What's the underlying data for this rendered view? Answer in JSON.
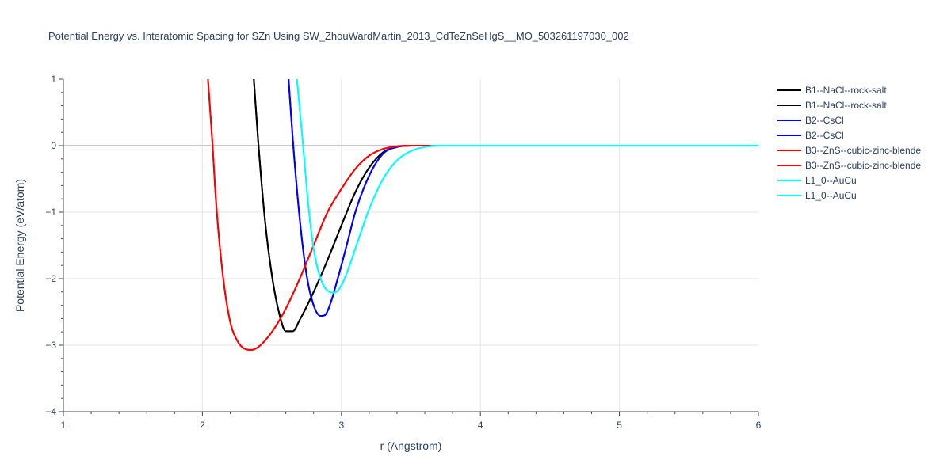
{
  "chart_data": {
    "type": "line",
    "title": "Potential Energy vs. Interatomic Spacing for SZn Using SW_ZhouWardMartin_2013_CdTeZnSeHgS__MO_503261197030_002",
    "xlabel": "r (Angstrom)",
    "ylabel": "Potential Energy (eV/atom)",
    "xlim": [
      1,
      6
    ],
    "ylim": [
      -4,
      1
    ],
    "x_ticks": [
      "1",
      "2",
      "3",
      "4",
      "5",
      "6"
    ],
    "y_ticks": [
      "1",
      "0",
      "−1",
      "−2",
      "−3",
      "−4"
    ],
    "grid": true,
    "legend_position": "top-right",
    "series": [
      {
        "name": "B1--NaCl--rock-salt",
        "color": "#000000",
        "x": [
          2.37,
          2.4,
          2.45,
          2.5,
          2.55,
          2.6,
          2.65,
          2.7,
          2.8,
          2.9,
          3.0,
          3.1,
          3.2,
          3.3,
          3.4,
          3.5,
          3.6,
          3.7,
          4.0,
          6.0
        ],
        "y": [
          1.0,
          0.1,
          -1.12,
          -1.95,
          -2.5,
          -2.79,
          -2.79,
          -2.62,
          -2.2,
          -1.72,
          -1.2,
          -0.7,
          -0.33,
          -0.1,
          -0.02,
          0.0,
          0.0,
          0.0,
          0.0,
          0.0
        ]
      },
      {
        "name": "B1--NaCl--rock-salt",
        "color": "#000000",
        "x": [
          2.37,
          2.4,
          2.45,
          2.5,
          2.55,
          2.6,
          2.65,
          2.7,
          2.8,
          2.9,
          3.0,
          3.1,
          3.2,
          3.3,
          3.4,
          3.5,
          3.6,
          3.7,
          4.0,
          6.0
        ],
        "y": [
          1.0,
          0.1,
          -1.12,
          -1.95,
          -2.5,
          -2.79,
          -2.79,
          -2.62,
          -2.2,
          -1.72,
          -1.2,
          -0.7,
          -0.33,
          -0.1,
          -0.02,
          0.0,
          0.0,
          0.0,
          0.0,
          0.0
        ]
      },
      {
        "name": "B2--CsCl",
        "color": "#0000ff",
        "x": [
          2.62,
          2.65,
          2.7,
          2.75,
          2.8,
          2.85,
          2.88,
          2.92,
          2.96,
          3.0,
          3.05,
          3.1,
          3.2,
          3.3,
          3.4,
          3.5,
          3.6,
          3.7,
          4.0,
          6.0
        ],
        "y": [
          1.0,
          0.1,
          -1.1,
          -1.95,
          -2.4,
          -2.56,
          -2.55,
          -2.38,
          -2.1,
          -1.8,
          -1.4,
          -1.0,
          -0.45,
          -0.12,
          -0.02,
          0.0,
          0.0,
          0.0,
          0.0,
          0.0
        ]
      },
      {
        "name": "B2--CsCl",
        "color": "#0000ff",
        "x": [
          2.62,
          2.65,
          2.7,
          2.75,
          2.8,
          2.85,
          2.88,
          2.92,
          2.96,
          3.0,
          3.05,
          3.1,
          3.2,
          3.3,
          3.4,
          3.5,
          3.6,
          3.7,
          4.0,
          6.0
        ],
        "y": [
          1.0,
          0.1,
          -1.1,
          -1.95,
          -2.4,
          -2.56,
          -2.55,
          -2.38,
          -2.1,
          -1.8,
          -1.4,
          -1.0,
          -0.45,
          -0.12,
          -0.02,
          0.0,
          0.0,
          0.0,
          0.0,
          0.0
        ]
      },
      {
        "name": "B3--ZnS--cubic-zinc-blende",
        "color": "#ff0000",
        "x": [
          2.04,
          2.07,
          2.1,
          2.15,
          2.2,
          2.25,
          2.3,
          2.35,
          2.4,
          2.5,
          2.6,
          2.7,
          2.8,
          2.9,
          3.0,
          3.1,
          3.2,
          3.3,
          3.4,
          3.5,
          3.6,
          3.7,
          4.0,
          6.0
        ],
        "y": [
          1.0,
          0.1,
          -0.9,
          -2.0,
          -2.65,
          -2.93,
          -3.05,
          -3.07,
          -3.03,
          -2.8,
          -2.45,
          -2.0,
          -1.5,
          -1.0,
          -0.65,
          -0.35,
          -0.15,
          -0.05,
          -0.01,
          0.0,
          0.0,
          0.0,
          0.0,
          0.0
        ]
      },
      {
        "name": "B3--ZnS--cubic-zinc-blende",
        "color": "#ff0000",
        "x": [
          2.04,
          2.07,
          2.1,
          2.15,
          2.2,
          2.25,
          2.3,
          2.35,
          2.4,
          2.5,
          2.6,
          2.7,
          2.8,
          2.9,
          3.0,
          3.1,
          3.2,
          3.3,
          3.4,
          3.5,
          3.6,
          3.7,
          4.0,
          6.0
        ],
        "y": [
          1.0,
          0.1,
          -0.9,
          -2.0,
          -2.65,
          -2.93,
          -3.05,
          -3.07,
          -3.03,
          -2.8,
          -2.45,
          -2.0,
          -1.5,
          -1.0,
          -0.65,
          -0.35,
          -0.15,
          -0.05,
          -0.01,
          0.0,
          0.0,
          0.0,
          0.0,
          0.0
        ]
      },
      {
        "name": "L1_0--AuCu",
        "color": "#00ffff",
        "x": [
          2.68,
          2.72,
          2.76,
          2.8,
          2.85,
          2.9,
          2.95,
          3.0,
          3.05,
          3.1,
          3.2,
          3.3,
          3.4,
          3.5,
          3.6,
          3.7,
          3.8,
          4.0,
          6.0
        ],
        "y": [
          1.0,
          0.1,
          -0.85,
          -1.55,
          -2.0,
          -2.18,
          -2.21,
          -2.1,
          -1.85,
          -1.55,
          -0.95,
          -0.5,
          -0.22,
          -0.08,
          -0.02,
          0.0,
          0.0,
          0.0,
          0.0
        ]
      },
      {
        "name": "L1_0--AuCu",
        "color": "#00ffff",
        "x": [
          2.68,
          2.72,
          2.76,
          2.8,
          2.85,
          2.9,
          2.95,
          3.0,
          3.05,
          3.1,
          3.2,
          3.3,
          3.4,
          3.5,
          3.6,
          3.7,
          3.8,
          4.0,
          6.0
        ],
        "y": [
          1.0,
          0.1,
          -0.85,
          -1.55,
          -2.0,
          -2.18,
          -2.21,
          -2.1,
          -1.85,
          -1.55,
          -0.95,
          -0.5,
          -0.22,
          -0.08,
          -0.02,
          0.0,
          0.0,
          0.0,
          0.0
        ]
      }
    ]
  }
}
